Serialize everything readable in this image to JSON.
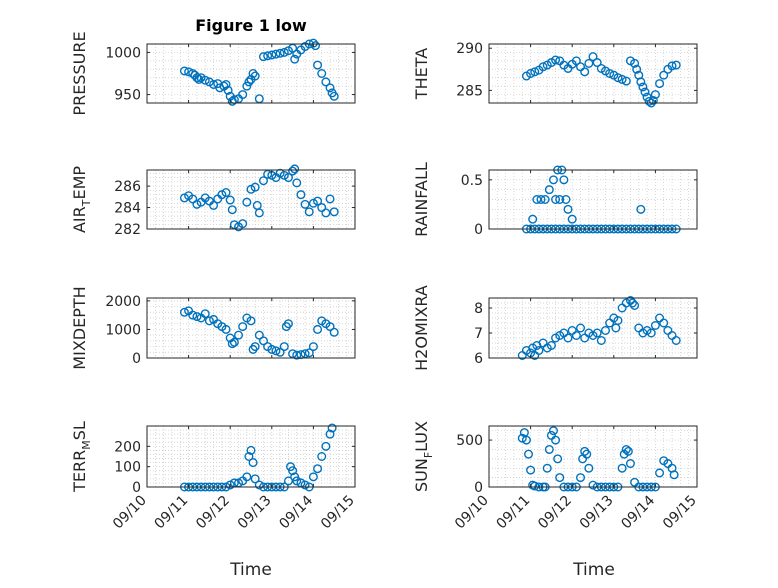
{
  "figure": {
    "title": "Figure 1 low",
    "xlabel": "Time",
    "marker_color": "#0072BD",
    "grid_color": "#c8c8c8",
    "axis_color": "#262626",
    "x_ticks": [
      "09/10",
      "09/11",
      "09/12",
      "09/13",
      "09/14",
      "09/15"
    ]
  },
  "chart_data": [
    {
      "type": "scatter",
      "ylabel": "PRESSURE",
      "ylim": [
        940,
        1010
      ],
      "yticks": [
        950,
        1000
      ],
      "ytick_labels": [
        "950",
        "1000"
      ],
      "x": [
        10.9,
        11.0,
        11.1,
        11.15,
        11.2,
        11.25,
        11.3,
        11.4,
        11.5,
        11.6,
        11.7,
        11.75,
        11.85,
        11.9,
        11.95,
        12.0,
        12.05,
        12.1,
        12.2,
        12.3,
        12.4,
        12.45,
        12.5,
        12.55,
        12.6,
        12.7,
        12.8,
        12.9,
        13.0,
        13.1,
        13.2,
        13.3,
        13.4,
        13.5,
        13.55,
        13.6,
        13.7,
        13.8,
        13.9,
        14.0,
        14.05,
        14.1,
        14.2,
        14.3,
        14.4,
        14.45,
        14.5
      ],
      "y": [
        978,
        977,
        975,
        973,
        970,
        968,
        970,
        967,
        965,
        962,
        963,
        958,
        960,
        962,
        955,
        948,
        942,
        944,
        945,
        950,
        960,
        965,
        968,
        975,
        972,
        945,
        995,
        996,
        997,
        998,
        999,
        1000,
        1002,
        1005,
        992,
        998,
        1003,
        1007,
        1010,
        1011,
        1008,
        985,
        975,
        965,
        958,
        952,
        948
      ]
    },
    {
      "type": "scatter",
      "ylabel": "THETA",
      "ylim": [
        283.5,
        290.5
      ],
      "yticks": [
        285,
        290
      ],
      "ytick_labels": [
        "285",
        "290"
      ],
      "x": [
        10.9,
        11.0,
        11.1,
        11.2,
        11.3,
        11.4,
        11.5,
        11.6,
        11.7,
        11.8,
        11.9,
        12.0,
        12.1,
        12.2,
        12.3,
        12.4,
        12.5,
        12.6,
        12.7,
        12.8,
        12.9,
        13.0,
        13.1,
        13.2,
        13.3,
        13.4,
        13.5,
        13.55,
        13.6,
        13.65,
        13.7,
        13.75,
        13.8,
        13.85,
        13.9,
        13.95,
        14.0,
        14.1,
        14.2,
        14.3,
        14.4,
        14.5
      ],
      "y": [
        286.7,
        287.0,
        287.2,
        287.4,
        287.8,
        288.0,
        288.3,
        288.6,
        288.5,
        288.0,
        287.6,
        288.1,
        288.5,
        287.8,
        287.2,
        288.2,
        289.0,
        288.3,
        287.6,
        287.3,
        287.0,
        286.8,
        286.5,
        286.3,
        286.1,
        288.5,
        288.2,
        287.5,
        286.8,
        286.0,
        285.4,
        284.8,
        284.2,
        283.7,
        283.5,
        283.8,
        284.5,
        285.8,
        286.8,
        287.5,
        287.9,
        288.0
      ]
    },
    {
      "type": "scatter",
      "ylabel": "AIR_TEMP",
      "ylim": [
        282,
        287.5
      ],
      "yticks": [
        282,
        284,
        286
      ],
      "ytick_labels": [
        "282",
        "284",
        "286"
      ],
      "x": [
        10.9,
        11.0,
        11.1,
        11.2,
        11.3,
        11.4,
        11.5,
        11.6,
        11.7,
        11.8,
        11.9,
        12.0,
        12.05,
        12.1,
        12.2,
        12.3,
        12.4,
        12.5,
        12.6,
        12.65,
        12.7,
        12.8,
        12.9,
        13.0,
        13.1,
        13.2,
        13.3,
        13.4,
        13.5,
        13.55,
        13.6,
        13.7,
        13.8,
        13.9,
        14.0,
        14.1,
        14.2,
        14.3,
        14.4,
        14.5
      ],
      "y": [
        284.9,
        285.1,
        284.8,
        284.3,
        284.5,
        284.9,
        284.6,
        284.2,
        284.8,
        285.2,
        285.4,
        284.7,
        283.8,
        282.4,
        282.2,
        282.5,
        284.5,
        285.7,
        285.9,
        284.2,
        283.5,
        286.5,
        287.1,
        287.0,
        286.8,
        287.2,
        287.0,
        286.8,
        287.4,
        287.6,
        286.3,
        285.2,
        284.3,
        283.6,
        284.4,
        284.6,
        284.0,
        283.5,
        284.8,
        283.6
      ]
    },
    {
      "type": "scatter",
      "ylabel": "RAINFALL",
      "ylim": [
        0,
        0.6
      ],
      "yticks": [
        0,
        0.5
      ],
      "ytick_labels": [
        "0",
        "0.5"
      ],
      "x": [
        10.9,
        11.0,
        11.1,
        11.2,
        11.3,
        11.4,
        11.5,
        11.6,
        11.7,
        11.8,
        11.9,
        12.0,
        12.1,
        12.2,
        12.3,
        12.4,
        12.5,
        12.6,
        12.7,
        12.8,
        12.9,
        13.0,
        13.1,
        13.2,
        13.3,
        13.4,
        13.5,
        13.6,
        13.7,
        13.8,
        13.9,
        14.0,
        14.1,
        14.2,
        14.3,
        14.4,
        14.5,
        11.05,
        11.15,
        11.25,
        11.35,
        11.45,
        11.55,
        11.6,
        11.65,
        11.7,
        11.75,
        11.8,
        11.85,
        11.9,
        12.0,
        13.65
      ],
      "y": [
        0,
        0,
        0,
        0,
        0,
        0,
        0,
        0,
        0,
        0,
        0,
        0,
        0,
        0,
        0,
        0,
        0,
        0,
        0,
        0,
        0,
        0,
        0,
        0,
        0,
        0,
        0,
        0,
        0,
        0,
        0,
        0,
        0,
        0,
        0,
        0,
        0,
        0.1,
        0.3,
        0.3,
        0.3,
        0.4,
        0.5,
        0.3,
        0.6,
        0.3,
        0.6,
        0.5,
        0.3,
        0.2,
        0.1,
        0.2
      ]
    },
    {
      "type": "scatter",
      "ylabel": "MIXDEPTH",
      "ylim": [
        0,
        2100
      ],
      "yticks": [
        0,
        1000,
        2000
      ],
      "ytick_labels": [
        "0",
        "1000",
        "2000"
      ],
      "x": [
        10.9,
        11.0,
        11.1,
        11.2,
        11.3,
        11.4,
        11.5,
        11.6,
        11.7,
        11.8,
        11.9,
        12.0,
        12.05,
        12.1,
        12.2,
        12.3,
        12.4,
        12.5,
        12.55,
        12.6,
        12.7,
        12.8,
        12.9,
        13.0,
        13.1,
        13.2,
        13.3,
        13.35,
        13.4,
        13.5,
        13.6,
        13.7,
        13.8,
        13.9,
        14.0,
        14.1,
        14.2,
        14.3,
        14.4,
        14.5
      ],
      "y": [
        1600,
        1650,
        1500,
        1450,
        1400,
        1550,
        1300,
        1350,
        1200,
        1100,
        1000,
        700,
        500,
        550,
        800,
        1100,
        1400,
        1300,
        300,
        400,
        800,
        600,
        400,
        300,
        250,
        200,
        400,
        1100,
        1200,
        150,
        100,
        120,
        150,
        180,
        400,
        1000,
        1300,
        1200,
        1100,
        900
      ]
    },
    {
      "type": "scatter",
      "ylabel": "H2OMIXRA",
      "ylim": [
        6,
        8.4
      ],
      "yticks": [
        6,
        7,
        8
      ],
      "ytick_labels": [
        "6",
        "7",
        "8"
      ],
      "x": [
        10.8,
        10.9,
        11.0,
        11.05,
        11.1,
        11.15,
        11.2,
        11.3,
        11.4,
        11.5,
        11.6,
        11.7,
        11.8,
        11.9,
        12.0,
        12.1,
        12.2,
        12.3,
        12.4,
        12.5,
        12.6,
        12.7,
        12.8,
        12.9,
        13.0,
        13.05,
        13.1,
        13.2,
        13.3,
        13.4,
        13.45,
        13.5,
        13.6,
        13.7,
        13.8,
        13.9,
        14.0,
        14.1,
        14.2,
        14.3,
        14.4,
        14.5
      ],
      "y": [
        6.1,
        6.3,
        6.2,
        6.4,
        6.1,
        6.5,
        6.3,
        6.6,
        6.4,
        6.5,
        6.8,
        6.9,
        7.0,
        6.8,
        7.1,
        6.9,
        7.2,
        6.8,
        7.0,
        6.9,
        7.0,
        6.7,
        7.1,
        7.4,
        7.6,
        7.2,
        7.5,
        8.0,
        8.2,
        8.3,
        8.2,
        8.1,
        7.2,
        7.0,
        7.1,
        7.0,
        7.3,
        7.6,
        7.4,
        7.1,
        6.9,
        6.7
      ]
    },
    {
      "type": "scatter",
      "ylabel": "TERR_MSL",
      "ylim": [
        0,
        300
      ],
      "yticks": [
        0,
        100,
        200
      ],
      "ytick_labels": [
        "0",
        "100",
        "200"
      ],
      "x": [
        10.9,
        11.0,
        11.1,
        11.2,
        11.3,
        11.4,
        11.5,
        11.6,
        11.7,
        11.8,
        11.9,
        12.0,
        12.1,
        12.2,
        12.3,
        12.4,
        12.45,
        12.5,
        12.55,
        12.6,
        12.7,
        12.8,
        12.9,
        13.0,
        13.1,
        13.2,
        13.3,
        13.4,
        13.45,
        13.5,
        13.55,
        13.6,
        13.7,
        13.8,
        13.9,
        14.0,
        14.1,
        14.2,
        14.3,
        14.4,
        14.45
      ],
      "y": [
        0,
        0,
        0,
        0,
        0,
        0,
        0,
        0,
        0,
        0,
        0,
        10,
        20,
        20,
        30,
        50,
        150,
        180,
        120,
        40,
        10,
        0,
        0,
        0,
        0,
        0,
        0,
        30,
        100,
        80,
        50,
        30,
        20,
        10,
        0,
        50,
        90,
        150,
        200,
        260,
        290
      ]
    },
    {
      "type": "scatter",
      "ylabel": "SUN_FLUX",
      "ylim": [
        0,
        650
      ],
      "yticks": [
        0,
        500
      ],
      "ytick_labels": [
        "0",
        "500"
      ],
      "x": [
        10.8,
        10.85,
        10.9,
        10.95,
        11.0,
        11.05,
        11.1,
        11.2,
        11.3,
        11.35,
        11.4,
        11.45,
        11.5,
        11.55,
        11.6,
        11.65,
        11.7,
        11.8,
        11.9,
        12.0,
        12.1,
        12.2,
        12.25,
        12.3,
        12.35,
        12.4,
        12.5,
        12.6,
        12.7,
        12.8,
        12.9,
        13.0,
        13.1,
        13.2,
        13.25,
        13.3,
        13.35,
        13.4,
        13.5,
        13.6,
        13.7,
        13.8,
        13.9,
        14.0,
        14.1,
        14.2,
        14.3,
        14.4,
        14.45
      ],
      "y": [
        520,
        580,
        500,
        350,
        180,
        20,
        10,
        0,
        0,
        0,
        200,
        400,
        550,
        600,
        500,
        300,
        100,
        0,
        0,
        0,
        0,
        100,
        300,
        380,
        350,
        200,
        20,
        0,
        0,
        0,
        0,
        0,
        0,
        200,
        350,
        400,
        380,
        250,
        50,
        0,
        0,
        0,
        0,
        0,
        150,
        280,
        250,
        200,
        130
      ]
    }
  ]
}
